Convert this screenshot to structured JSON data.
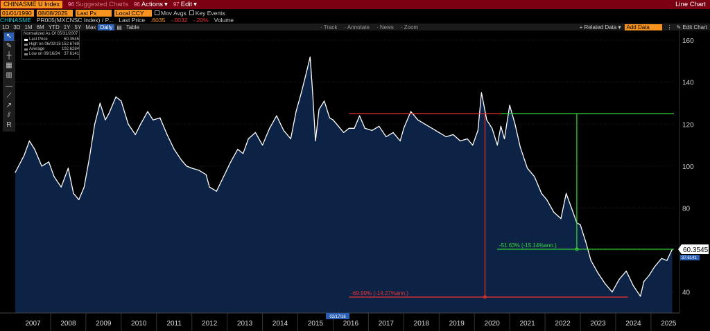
{
  "titlebar": {
    "ticker": "CHINASME U Index",
    "suggested": {
      "num": "96",
      "label": "Suggested Charts"
    },
    "actions": {
      "num": "96",
      "label": "Actions"
    },
    "edit": {
      "num": "97",
      "label": "Edit"
    },
    "right_title": "Line Chart"
  },
  "controls": {
    "start_date": "01/01/1990",
    "end_date": "08/08/2025",
    "field": "Last Px",
    "currency": "Local CCY",
    "mov_avgs": "Mov Avgs",
    "key_events": "Key Events"
  },
  "series_row": {
    "ticker": "CHINASME",
    "formula": "PR005(MXCNSC Index) / P...",
    "last_price_label": "Last Price",
    "last_price": ".6035",
    "change": "-.0032",
    "change_pct": "-.20%",
    "volume_label": "Volume"
  },
  "periods": [
    "1D",
    "3D",
    "1M",
    "6M",
    "YTD",
    "1Y",
    "5Y",
    "Max"
  ],
  "frequency": "Daily",
  "table_label": "Table",
  "center_tools": [
    "Track",
    "Annotate",
    "News",
    "Zoom"
  ],
  "right_tools": {
    "related": "Related Data",
    "add_data": "Add Data",
    "edit_chart": "Edit Chart"
  },
  "legend": {
    "header": "Normalized As Of 05/31/2007",
    "rows": [
      {
        "label": "Last Price",
        "value": "60.3545"
      },
      {
        "label": "High on 06/02/15",
        "value": "152.6769"
      },
      {
        "label": "Average",
        "value": "102.6284"
      },
      {
        "label": "Low on 09/16/24",
        "value": "37.6141"
      }
    ]
  },
  "chart_data": {
    "type": "area",
    "ylim": [
      30,
      162
    ],
    "y_ticks": [
      40,
      60,
      80,
      100,
      120,
      140,
      160
    ],
    "x_ticks": [
      "2007",
      "2008",
      "2009",
      "2010",
      "2011",
      "2012",
      "2013",
      "2014",
      "2015",
      "2016",
      "2017",
      "2018",
      "2019",
      "2020",
      "2021",
      "2022",
      "2023",
      "2024",
      "2025"
    ],
    "x_start": 2007.0,
    "x_end": 2025.65,
    "series": [
      {
        "x": [
          2007.0,
          2007.25,
          2007.4,
          2007.55,
          2007.75,
          2007.95,
          2008.1,
          2008.3,
          2008.5,
          2008.65,
          2008.8,
          2008.95,
          2009.1,
          2009.25,
          2009.4,
          2009.55,
          2009.65,
          2009.85,
          2010.0,
          2010.2,
          2010.4,
          2010.55,
          2010.75,
          2010.9,
          2011.1,
          2011.3,
          2011.5,
          2011.7,
          2011.85,
          2012.0,
          2012.2,
          2012.4,
          2012.5,
          2012.7,
          2012.9,
          2013.1,
          2013.3,
          2013.45,
          2013.6,
          2013.8,
          2014.0,
          2014.2,
          2014.4,
          2014.6,
          2014.8,
          2014.95,
          2015.1,
          2015.25,
          2015.35,
          2015.42,
          2015.5,
          2015.6,
          2015.75,
          2015.9,
          2016.0,
          2016.15,
          2016.3,
          2016.45,
          2016.6,
          2016.75,
          2016.9,
          2017.1,
          2017.3,
          2017.5,
          2017.7,
          2017.9,
          2018.0,
          2018.2,
          2018.4,
          2018.6,
          2018.8,
          2019.0,
          2019.2,
          2019.4,
          2019.6,
          2019.8,
          2019.95,
          2020.1,
          2020.2,
          2020.35,
          2020.5,
          2020.65,
          2020.75,
          2020.85,
          2021.0,
          2021.15,
          2021.3,
          2021.5,
          2021.7,
          2021.9,
          2022.05,
          2022.25,
          2022.45,
          2022.6,
          2022.75,
          2022.9,
          2023.0,
          2023.15,
          2023.3,
          2023.5,
          2023.7,
          2023.9,
          2024.1,
          2024.3,
          2024.5,
          2024.7,
          2024.8,
          2024.95,
          2025.1,
          2025.3,
          2025.45,
          2025.6
        ],
        "values": [
          97,
          105,
          112,
          108,
          100,
          102,
          95,
          90,
          99,
          87,
          84,
          90,
          104,
          120,
          130,
          122,
          125,
          133,
          131,
          120,
          115,
          120,
          126,
          122,
          123,
          115,
          108,
          103,
          100,
          99,
          98,
          96,
          90,
          88,
          95,
          102,
          108,
          106,
          113,
          116,
          110,
          118,
          124,
          117,
          113,
          126,
          135,
          145,
          152,
          135,
          112,
          127,
          131,
          123,
          122,
          119,
          116,
          118,
          118,
          124,
          118,
          117,
          119,
          114,
          116,
          112,
          118,
          126,
          122,
          120,
          118,
          116,
          114,
          115,
          112,
          113,
          110,
          117,
          135,
          122,
          118,
          110,
          119,
          113,
          129,
          120,
          109,
          99,
          95,
          87,
          84,
          78,
          75,
          87,
          80,
          73,
          72,
          64,
          55,
          49,
          44,
          40,
          46,
          50,
          43,
          38,
          45,
          48,
          52,
          56,
          55,
          60.35
        ]
      }
    ]
  },
  "annotations": {
    "green_label": "-51.63% (-15.14%ann.)",
    "red_label": "-69.99% (-14.27%ann.)",
    "green": {
      "x0": 2020.75,
      "x1": 2025.65,
      "y_high": 125,
      "y_low": 60.4,
      "x_drop": 2022.9
    },
    "red": {
      "x0": 2016.45,
      "x1": 2024.35,
      "y_high": 125,
      "y_low": 37.6,
      "x_drop": 2020.3
    }
  },
  "last_value_label": "60.3545",
  "small_marker": "37.6141",
  "x_marker": "02/17/16",
  "colors": {
    "background": "#000000",
    "area_fill": "#0c2346",
    "line": "#ffffff",
    "green": "#33dd33",
    "red": "#ee3333",
    "orange": "#f7931e",
    "title_bar": "#7a0012"
  }
}
